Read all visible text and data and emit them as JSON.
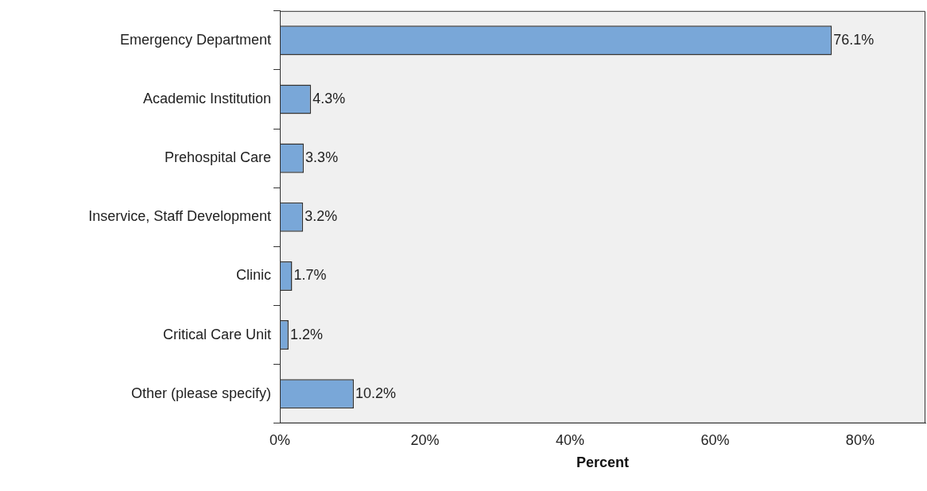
{
  "chart_data": {
    "type": "bar",
    "orientation": "horizontal",
    "xlabel": "Percent",
    "categories": [
      "Emergency Department",
      "Academic Institution",
      "Prehospital Care",
      "Inservice, Staff Development",
      "Clinic",
      "Critical Care Unit",
      "Other (please specify)"
    ],
    "values": [
      76.1,
      4.3,
      3.3,
      3.2,
      1.7,
      1.2,
      10.2
    ],
    "value_labels": [
      "76.1%",
      "4.3%",
      "3.3%",
      "3.2%",
      "1.7%",
      "1.2%",
      "10.2%"
    ],
    "color": "#79a7d8",
    "xlim": [
      0,
      89
    ],
    "xticks": [
      {
        "value": 0,
        "label": "0%"
      },
      {
        "value": 20,
        "label": "20%"
      },
      {
        "value": 40,
        "label": "40%"
      },
      {
        "value": 60,
        "label": "60%"
      },
      {
        "value": 80,
        "label": "80%"
      }
    ],
    "grid": false,
    "legend": false
  }
}
